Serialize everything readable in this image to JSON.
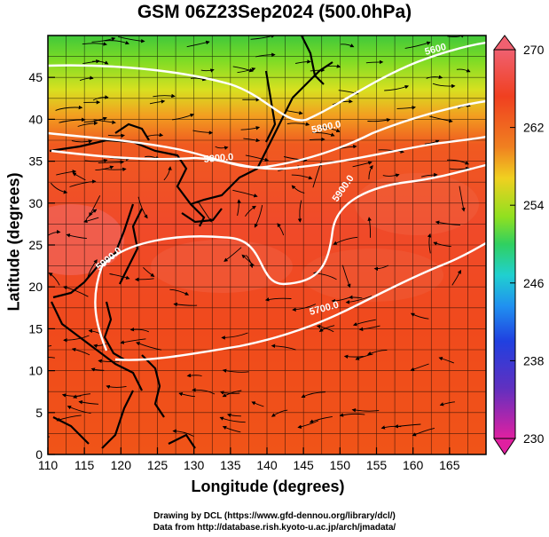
{
  "title": "GSM 06Z23Sep2024 (500.0hPa)",
  "x_axis": {
    "label": "Longitude (degrees)",
    "ticks": [
      "110",
      "115",
      "120",
      "125",
      "130",
      "135",
      "140",
      "145",
      "150",
      "155",
      "160",
      "165"
    ]
  },
  "y_axis": {
    "label": "Latitude  (degrees)",
    "ticks": [
      "0",
      "5",
      "10",
      "15",
      "20",
      "25",
      "30",
      "35",
      "40",
      "45"
    ]
  },
  "colorbar": {
    "ticks": [
      "270",
      "262",
      "254",
      "246",
      "238",
      "230"
    ],
    "colors": [
      "#e0208a",
      "#3030c0",
      "#2070f0",
      "#20d0e0",
      "#30d060",
      "#90e020",
      "#f0d020",
      "#f08020",
      "#f04020",
      "#f06060"
    ]
  },
  "contour_labels": [
    "5600",
    "5800.0",
    "5800.0",
    "5900.0",
    "5900.0",
    "5700.0"
  ],
  "credits": {
    "line1": "Drawing by DCL (https://www.gfd-dennou.org/library/dcl/)",
    "line2": "Data from http://database.rish.kyoto-u.ac.jp/arch/jmadata/"
  }
}
